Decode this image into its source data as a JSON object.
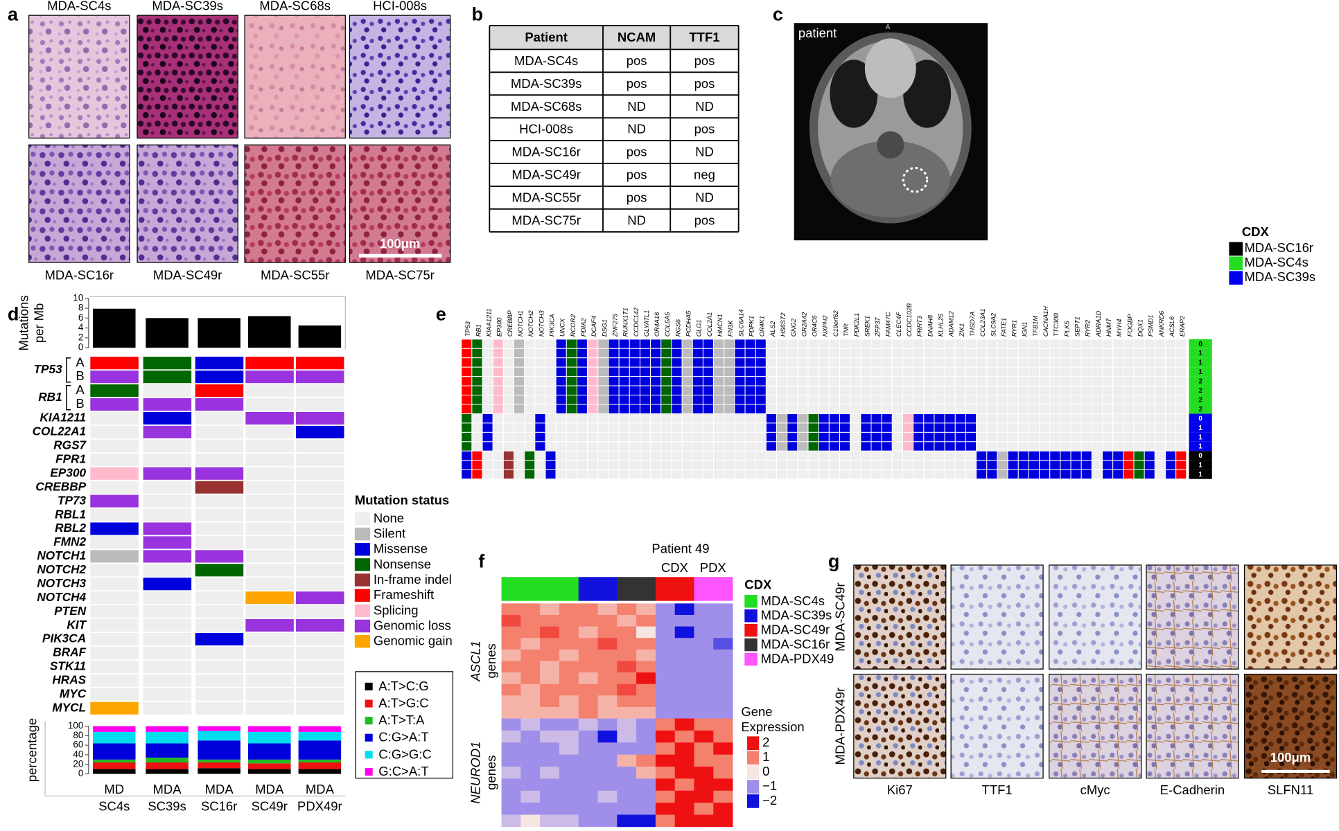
{
  "panel_a": {
    "label": "a",
    "top_labels": [
      "MDA-SC4s",
      "MDA-SC39s",
      "MDA-SC68s",
      "HCI-008s"
    ],
    "bottom_labels": [
      "MDA-SC16r",
      "MDA-SC49r",
      "MDA-SC55r",
      "MDA-SC75r"
    ],
    "scale_bar": "100μm"
  },
  "panel_b": {
    "label": "b",
    "header": [
      "Patient",
      "NCAM",
      "TTF1"
    ],
    "rows": [
      [
        "MDA-SC4s",
        "pos",
        "pos"
      ],
      [
        "MDA-SC39s",
        "pos",
        "pos"
      ],
      [
        "MDA-SC68s",
        "ND",
        "ND"
      ],
      [
        "HCI-008s",
        "ND",
        "pos"
      ],
      [
        "MDA-SC16r",
        "pos",
        "ND"
      ],
      [
        "MDA-SC49r",
        "pos",
        "neg"
      ],
      [
        "MDA-SC55r",
        "pos",
        "ND"
      ],
      [
        "MDA-SC75r",
        "ND",
        "pos"
      ]
    ]
  },
  "panel_c": {
    "label": "c",
    "image_label": "patient",
    "orientation_mark": "A"
  },
  "panel_d": {
    "label": "d",
    "mutations_chart": {
      "y_label": [
        "Mutations",
        "per Mb"
      ],
      "ylim": [
        0,
        10
      ],
      "yticks": [
        0,
        2,
        4,
        6,
        8,
        10
      ],
      "values": [
        7.9,
        6,
        6,
        6.4,
        4.5
      ],
      "color": "#000000"
    },
    "x_labels": [
      [
        "MD",
        "SC4s"
      ],
      [
        "MDA",
        "SC39s"
      ],
      [
        "MDA",
        "SC16r"
      ],
      [
        "MDA",
        "SC49r"
      ],
      [
        "MDA",
        "PDX49r"
      ]
    ],
    "genes": [
      {
        "gene": "TP53",
        "alleles": [
          {
            "label": "A",
            "status": [
              "Frameshift",
              "Nonsense",
              "Missense",
              "Frameshift",
              "Frameshift"
            ]
          },
          {
            "label": "B",
            "status": [
              "Genomic loss",
              "Nonsense",
              "Missense",
              "Genomic loss",
              "Genomic loss"
            ]
          }
        ]
      },
      {
        "gene": "RB1",
        "alleles": [
          {
            "label": "A",
            "status": [
              "Nonsense",
              "None",
              "Frameshift",
              "None",
              "None"
            ]
          },
          {
            "label": "B",
            "status": [
              "Genomic loss",
              "Genomic loss",
              "Genomic loss",
              "None",
              "None"
            ]
          }
        ]
      },
      {
        "gene": "KIA1211",
        "status": [
          "None",
          "Missense",
          "None",
          "Genomic loss",
          "Genomic loss"
        ]
      },
      {
        "gene": "COL22A1",
        "status": [
          "None",
          "Genomic loss",
          "None",
          "None",
          "Missense"
        ]
      },
      {
        "gene": "RGS7",
        "status": [
          "None",
          "None",
          "None",
          "None",
          "None"
        ]
      },
      {
        "gene": "FPR1",
        "status": [
          "None",
          "None",
          "None",
          "None",
          "None"
        ]
      },
      {
        "gene": "EP300",
        "status": [
          "Splicing",
          "Genomic loss",
          "Genomic loss",
          "None",
          "None"
        ]
      },
      {
        "gene": "CREBBP",
        "status": [
          "None",
          "None",
          "In-frame indel",
          "None",
          "None"
        ]
      },
      {
        "gene": "TP73",
        "status": [
          "Genomic loss",
          "None",
          "None",
          "None",
          "None"
        ]
      },
      {
        "gene": "RBL1",
        "status": [
          "None",
          "None",
          "None",
          "None",
          "None"
        ]
      },
      {
        "gene": "RBL2",
        "status": [
          "Missense",
          "Genomic loss",
          "None",
          "None",
          "None"
        ]
      },
      {
        "gene": "FMN2",
        "status": [
          "None",
          "Genomic loss",
          "None",
          "None",
          "None"
        ]
      },
      {
        "gene": "NOTCH1",
        "status": [
          "Silent",
          "Genomic loss",
          "Genomic loss",
          "None",
          "None"
        ]
      },
      {
        "gene": "NOTCH2",
        "status": [
          "None",
          "None",
          "Nonsense",
          "None",
          "None"
        ]
      },
      {
        "gene": "NOTCH3",
        "status": [
          "None",
          "Missense",
          "None",
          "None",
          "None"
        ]
      },
      {
        "gene": "NOTCH4",
        "status": [
          "None",
          "None",
          "None",
          "Genomic gain",
          "Genomic loss"
        ]
      },
      {
        "gene": "PTEN",
        "status": [
          "None",
          "None",
          "None",
          "None",
          "None"
        ]
      },
      {
        "gene": "KIT",
        "status": [
          "None",
          "None",
          "None",
          "Genomic loss",
          "Genomic loss"
        ]
      },
      {
        "gene": "PIK3CA",
        "status": [
          "None",
          "None",
          "Missense",
          "None",
          "None"
        ]
      },
      {
        "gene": "BRAF",
        "status": [
          "None",
          "None",
          "None",
          "None",
          "None"
        ]
      },
      {
        "gene": "STK11",
        "status": [
          "None",
          "None",
          "None",
          "None",
          "None"
        ]
      },
      {
        "gene": "HRAS",
        "status": [
          "None",
          "None",
          "None",
          "None",
          "None"
        ]
      },
      {
        "gene": "MYC",
        "status": [
          "None",
          "None",
          "None",
          "None",
          "None"
        ]
      },
      {
        "gene": "MYCL",
        "status": [
          "Genomic gain",
          "None",
          "None",
          "None",
          "None"
        ]
      }
    ],
    "status_legend": {
      "title": "Mutation status",
      "items": [
        {
          "name": "None",
          "color": "#eeeeee"
        },
        {
          "name": "Silent",
          "color": "#bbbbbb"
        },
        {
          "name": "Missense",
          "color": "#0000dd"
        },
        {
          "name": "Nonsense",
          "color": "#006600"
        },
        {
          "name": "In-frame indel",
          "color": "#993333"
        },
        {
          "name": "Frameshift",
          "color": "#ff0000"
        },
        {
          "name": "Splicing",
          "color": "#ffbbcc"
        },
        {
          "name": "Genomic loss",
          "color": "#9933dd"
        },
        {
          "name": "Genomic gain",
          "color": "#ffa500"
        }
      ]
    },
    "spectrum_chart": {
      "y_label": "percentage",
      "ylim": [
        0,
        100
      ],
      "yticks": [
        0,
        20,
        40,
        60,
        80,
        100
      ],
      "series": [
        {
          "name": "A:T>C:G",
          "color": "#000000",
          "values": [
            10,
            10,
            12,
            10,
            10
          ]
        },
        {
          "name": "A:T>G:C",
          "color": "#ee1111",
          "values": [
            14,
            14,
            12,
            12,
            14
          ]
        },
        {
          "name": "A:T>T:A",
          "color": "#22bb22",
          "values": [
            6,
            10,
            6,
            8,
            6
          ]
        },
        {
          "name": "C:G>A:T",
          "color": "#0000dd",
          "values": [
            34,
            30,
            40,
            34,
            40
          ]
        },
        {
          "name": "C:G>G:C",
          "color": "#00ddee",
          "values": [
            24,
            24,
            20,
            24,
            18
          ]
        },
        {
          "name": "G:C>A:T",
          "color": "#ff00ee",
          "values": [
            12,
            12,
            10,
            12,
            12
          ]
        }
      ]
    }
  },
  "panel_e": {
    "label": "e",
    "legend": {
      "title": "CDX",
      "items": [
        {
          "name": "MDA-SC16r",
          "color": "#000000"
        },
        {
          "name": "MDA-SC4s",
          "color": "#22dd22"
        },
        {
          "name": "MDA-SC39s",
          "color": "#0000ee"
        }
      ]
    },
    "genes": [
      "TP53",
      "RB1",
      "KIAA1211",
      "EP300",
      "CREBBP",
      "NOTCH1",
      "NOTCH2",
      "NOTCH3",
      "PIK3CA",
      "UNCX",
      "RCOR2",
      "PDIA2",
      "DCAF4",
      "DSG1",
      "ZNF275",
      "RUNX1T1",
      "CCDC142",
      "GLYATL1",
      "OR4A16",
      "COL6A5",
      "RGS6",
      "PCDHA5",
      "GLG1",
      "COL2A1",
      "HMCN1",
      "FN3K",
      "SLC6A14",
      "PDPK1",
      "OR4K1",
      "ALS2",
      "HS6ST2",
      "GNG2",
      "OR2A42",
      "OR4C6",
      "NXPH2",
      "C19orf62",
      "TNR",
      "PDK2L1",
      "SREK1",
      "ZFP37",
      "FAM47C",
      "CLEC4F",
      "CCDC102B",
      "PRRT3",
      "DNAH8",
      "KLHL25",
      "ADAM12",
      "ZIK1",
      "THSD7A",
      "COL23A1",
      "SLC9A2",
      "FATE1",
      "RYR1",
      "IGN1",
      "TFB1M",
      "CACNA1H",
      "TTC30B",
      "PLK5",
      "SEPT1",
      "RYR2",
      "ADRA1D",
      "HNMT",
      "MYH4",
      "FOGBP",
      "DQX1",
      "PSMD1",
      "ANKRD6",
      "ACSL6",
      "ERAP2"
    ],
    "cell_colors": {
      ".": "#eeeeee",
      "f": "#ff0000",
      "n": "#006600",
      "m": "#0000dd",
      "s": "#ffbbcc",
      "g": "#bbbbbb",
      "i": "#993333"
    },
    "blocks": [
      {
        "sample": "MDA-SC4s",
        "counts": [
          0,
          1,
          1,
          1,
          2,
          2,
          2,
          2
        ],
        "cells": "fn.s.g...mnmsgmmmmmnmgmmggmmm........................................"
      },
      {
        "sample": "MDA-SC39s",
        "counts": [
          0,
          1,
          1,
          1
        ],
        "cells": "n.m....m.....................mgmgnmmm.mmm.smmmmmm...................."
      },
      {
        "sample": "MDA-SC16r",
        "counts": [
          0,
          1,
          1
        ],
        "cells": "mf..i.n.m........................................mmgmmmmmmmm.mmfnm.mf"
      }
    ]
  },
  "panel_f": {
    "label": "f",
    "title": "Patient 49",
    "sub_labels": [
      "CDX",
      "PDX"
    ],
    "columns": [
      "MDA-SC4s",
      "MDA-SC4s",
      "MDA-SC4s",
      "MDA-SC4s",
      "MDA-SC39s",
      "MDA-SC39s",
      "MDA-SC16r",
      "MDA-SC16r",
      "MDA-SC49r",
      "MDA-SC49r",
      "MDA-PDX49",
      "MDA-PDX49"
    ],
    "row_groups": [
      {
        "label": "ASCL1",
        "suffix": "genes",
        "values": [
          [
            1,
            1,
            0.5,
            1,
            1,
            0.5,
            1,
            0.5,
            -1,
            -2,
            -1,
            -1
          ],
          [
            1.5,
            1,
            1,
            1,
            1,
            1,
            0.5,
            1,
            -1,
            -1,
            -1,
            -1
          ],
          [
            1,
            1,
            1.5,
            1,
            0.5,
            1,
            1,
            0,
            -1,
            -2,
            -1,
            -1
          ],
          [
            1,
            0.5,
            1,
            1,
            1,
            1.5,
            1,
            1,
            -1,
            -1,
            -1,
            -1.5
          ],
          [
            0.5,
            1,
            1,
            0.5,
            1,
            1,
            1,
            0.5,
            -1,
            -1,
            -1,
            -1
          ],
          [
            1,
            1,
            0.5,
            1,
            1,
            1,
            1.5,
            1,
            -1,
            -1,
            -1,
            -1
          ],
          [
            0.5,
            1,
            0.5,
            1,
            0.5,
            1,
            1,
            2,
            -1,
            -1,
            -1,
            -1
          ],
          [
            1,
            0.5,
            1,
            1,
            1,
            1,
            1.5,
            1,
            -1,
            -1,
            -1,
            -1
          ],
          [
            0.5,
            0.5,
            1,
            0.5,
            1,
            0.5,
            1,
            1,
            -1,
            -1,
            -1,
            -1
          ],
          [
            0.5,
            0.5,
            0.5,
            0.5,
            1,
            0.5,
            0.5,
            0.5,
            -1,
            -1,
            -1,
            -1
          ]
        ]
      },
      {
        "label": "NEUROD1",
        "suffix": "genes",
        "values": [
          [
            -1,
            -0.5,
            -1,
            -1,
            -0.5,
            -1,
            -0.5,
            -1,
            1,
            2,
            1,
            1
          ],
          [
            -0.5,
            -1,
            -0.5,
            -0.5,
            -1,
            -2,
            -0.5,
            -1,
            2,
            1,
            2,
            1
          ],
          [
            -1,
            -1,
            -1,
            -0.5,
            -1,
            -1,
            -1,
            -1,
            1,
            2,
            1,
            2
          ],
          [
            -1,
            -1,
            -1,
            -1,
            -1,
            -1,
            0.5,
            1,
            2,
            2,
            1,
            1
          ],
          [
            -0.5,
            -1,
            -0.5,
            -1,
            -1,
            -1,
            -1,
            0.5,
            1,
            2,
            2,
            1
          ],
          [
            -1,
            -1,
            -1,
            -1,
            -1,
            -1,
            -1,
            -1,
            2,
            1,
            2,
            2
          ],
          [
            -1,
            -0.5,
            -1,
            -1,
            -1,
            -0.5,
            -1,
            -1,
            1,
            2,
            2,
            1
          ],
          [
            -1,
            -1,
            -1,
            -1,
            -1,
            -1,
            -1,
            -1,
            2,
            2,
            1,
            2
          ],
          [
            -0.5,
            0,
            -0.5,
            -0.5,
            -1,
            -1,
            -2,
            -2,
            1,
            2,
            2,
            2
          ]
        ]
      }
    ],
    "legend": {
      "title": "CDX",
      "items": [
        {
          "name": "MDA-SC4s",
          "color": "#22dd22"
        },
        {
          "name": "MDA-SC39s",
          "color": "#1111dd"
        },
        {
          "name": "MDA-SC49r",
          "color": "#ee1111"
        },
        {
          "name": "MDA-SC16r",
          "color": "#333333"
        },
        {
          "name": "MDA-PDX49",
          "color": "#ff55ff"
        }
      ]
    },
    "scale": {
      "title": [
        "Gene",
        "Expression"
      ],
      "ticks": [
        2,
        1,
        0,
        {
          "value": -1,
          "label": "−1"
        },
        {
          "value": -2,
          "label": "−2"
        }
      ],
      "colors": [
        "#ee1111",
        "#f4806e",
        "#f6e6e2",
        "#9f8fea",
        "#1111dd"
      ]
    }
  },
  "panel_g": {
    "label": "g",
    "row_labels": [
      "MDA-SC49r",
      "MDA-PDX49r"
    ],
    "column_labels": [
      "Ki67",
      "TTF1",
      "cMyc",
      "E-Cadherin",
      "SLFN11"
    ],
    "scale_bar": "100μm"
  }
}
